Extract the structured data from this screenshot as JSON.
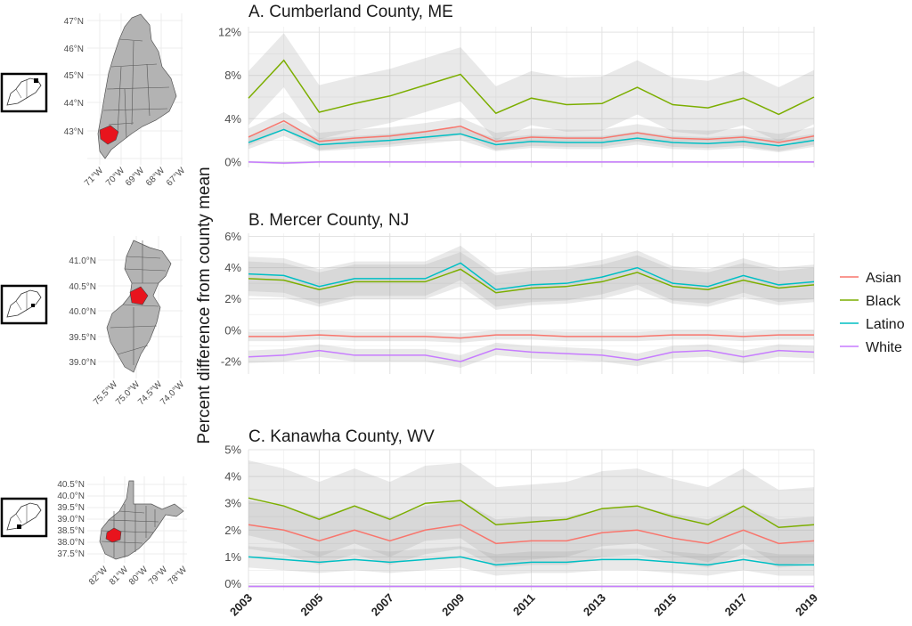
{
  "chart_data": {
    "type": "line",
    "ylabel": "Percent difference from county mean",
    "x": [
      2003,
      2004,
      2005,
      2006,
      2007,
      2008,
      2009,
      2010,
      2011,
      2012,
      2013,
      2014,
      2015,
      2016,
      2017,
      2018,
      2019
    ],
    "x_tick_labels": [
      "2003",
      "2005",
      "2007",
      "2009",
      "2011",
      "2013",
      "2015",
      "2017",
      "2019"
    ],
    "legend": {
      "placement": "right",
      "entries": [
        {
          "name": "Asian",
          "color": "#F8766D"
        },
        {
          "name": "Black",
          "color": "#7CAE00"
        },
        {
          "name": "Latino",
          "color": "#00BFC4"
        },
        {
          "name": "White",
          "color": "#C77CFF"
        }
      ]
    },
    "grid": true,
    "panels": [
      {
        "title": "A. Cumberland County, ME",
        "ylim": [
          -0.5,
          12.5
        ],
        "yticks": [
          0,
          4,
          8,
          12
        ],
        "ytick_labels": [
          "0%",
          "4%",
          "8%",
          "12%"
        ],
        "series": [
          {
            "name": "Asian",
            "values": [
              2.3,
              3.8,
              1.9,
              2.2,
              2.4,
              2.8,
              3.3,
              1.9,
              2.3,
              2.2,
              2.2,
              2.7,
              2.2,
              2.1,
              2.3,
              1.8,
              2.4
            ],
            "band": 0.8
          },
          {
            "name": "Black",
            "values": [
              5.9,
              9.4,
              4.6,
              5.4,
              6.1,
              7.1,
              8.1,
              4.5,
              5.9,
              5.3,
              5.4,
              6.9,
              5.3,
              5.0,
              5.9,
              4.4,
              6.0
            ],
            "band": 2.5
          },
          {
            "name": "Latino",
            "values": [
              1.8,
              3.0,
              1.6,
              1.8,
              2.0,
              2.3,
              2.6,
              1.6,
              1.9,
              1.8,
              1.8,
              2.2,
              1.8,
              1.7,
              1.9,
              1.5,
              2.0
            ],
            "band": 0.6
          },
          {
            "name": "White",
            "values": [
              0.0,
              -0.1,
              0.0,
              0.0,
              0.0,
              0.0,
              0.0,
              0.0,
              0.0,
              0.0,
              0.0,
              0.0,
              0.0,
              0.0,
              0.0,
              0.0,
              0.0
            ],
            "band": 0.1
          }
        ]
      },
      {
        "title": "B. Mercer County, NJ",
        "ylim": [
          -2.8,
          6.2
        ],
        "yticks": [
          -2,
          0,
          2,
          4,
          6
        ],
        "ytick_labels": [
          "-2%",
          "0%",
          "2%",
          "4%",
          "6%"
        ],
        "series": [
          {
            "name": "Asian",
            "values": [
              -0.4,
              -0.4,
              -0.3,
              -0.4,
              -0.4,
              -0.4,
              -0.5,
              -0.3,
              -0.3,
              -0.4,
              -0.4,
              -0.4,
              -0.3,
              -0.3,
              -0.4,
              -0.3,
              -0.3
            ],
            "band": 0.3
          },
          {
            "name": "Black",
            "values": [
              3.3,
              3.2,
              2.6,
              3.1,
              3.1,
              3.1,
              3.9,
              2.4,
              2.7,
              2.8,
              3.1,
              3.7,
              2.8,
              2.6,
              3.2,
              2.7,
              2.9
            ],
            "band": 1.1
          },
          {
            "name": "Latino",
            "values": [
              3.6,
              3.5,
              2.8,
              3.3,
              3.3,
              3.3,
              4.3,
              2.6,
              2.9,
              3.0,
              3.4,
              4.0,
              3.0,
              2.8,
              3.5,
              2.9,
              3.1
            ],
            "band": 1.1
          },
          {
            "name": "White",
            "values": [
              -1.7,
              -1.6,
              -1.3,
              -1.6,
              -1.6,
              -1.6,
              -2.0,
              -1.2,
              -1.4,
              -1.5,
              -1.6,
              -1.9,
              -1.4,
              -1.3,
              -1.7,
              -1.3,
              -1.4
            ],
            "band": 0.4
          }
        ]
      },
      {
        "title": "C. Kanawha County, WV",
        "ylim": [
          -0.25,
          5.0
        ],
        "yticks": [
          0,
          1,
          2,
          3,
          4,
          5
        ],
        "ytick_labels": [
          "0%",
          "1%",
          "2%",
          "3%",
          "4%",
          "5%"
        ],
        "series": [
          {
            "name": "Asian",
            "values": [
              2.2,
              2.0,
              1.6,
              2.0,
              1.6,
              2.0,
              2.2,
              1.5,
              1.6,
              1.6,
              1.9,
              2.0,
              1.7,
              1.5,
              2.0,
              1.5,
              1.6
            ],
            "band": 0.9
          },
          {
            "name": "Black",
            "values": [
              3.2,
              2.9,
              2.4,
              2.9,
              2.4,
              3.0,
              3.1,
              2.2,
              2.3,
              2.4,
              2.8,
              2.9,
              2.5,
              2.2,
              2.9,
              2.1,
              2.2
            ],
            "band": 1.4
          },
          {
            "name": "Latino",
            "values": [
              1.0,
              0.9,
              0.8,
              0.9,
              0.8,
              0.9,
              1.0,
              0.7,
              0.8,
              0.8,
              0.9,
              0.9,
              0.8,
              0.7,
              0.9,
              0.7,
              0.7
            ],
            "band": 0.4
          },
          {
            "name": "White",
            "values": [
              -0.1,
              -0.1,
              -0.1,
              -0.1,
              -0.1,
              -0.1,
              -0.1,
              -0.1,
              -0.1,
              -0.1,
              -0.1,
              -0.1,
              -0.1,
              -0.1,
              -0.1,
              -0.1,
              -0.1
            ],
            "band": 0.05
          }
        ]
      }
    ],
    "locator_maps": [
      {
        "state": "Maine",
        "lat_labels": [
          "47°N",
          "46°N",
          "45°N",
          "44°N",
          "43°N"
        ],
        "lon_labels": [
          "71°W",
          "70°W",
          "69°W",
          "68°W",
          "67°W"
        ]
      },
      {
        "state": "New Jersey",
        "lat_labels": [
          "41.0°N",
          "40.5°N",
          "40.0°N",
          "39.5°N",
          "39.0°N"
        ],
        "lon_labels": [
          "75.5°W",
          "75.0°W",
          "74.5°W",
          "74.0°W"
        ]
      },
      {
        "state": "West Virginia",
        "lat_labels": [
          "40.5°N",
          "40.0°N",
          "39.5°N",
          "39.0°N",
          "38.5°N",
          "38.0°N",
          "37.5°N"
        ],
        "lon_labels": [
          "82°W",
          "81°W",
          "80°W",
          "79°W",
          "78°W"
        ]
      }
    ]
  }
}
